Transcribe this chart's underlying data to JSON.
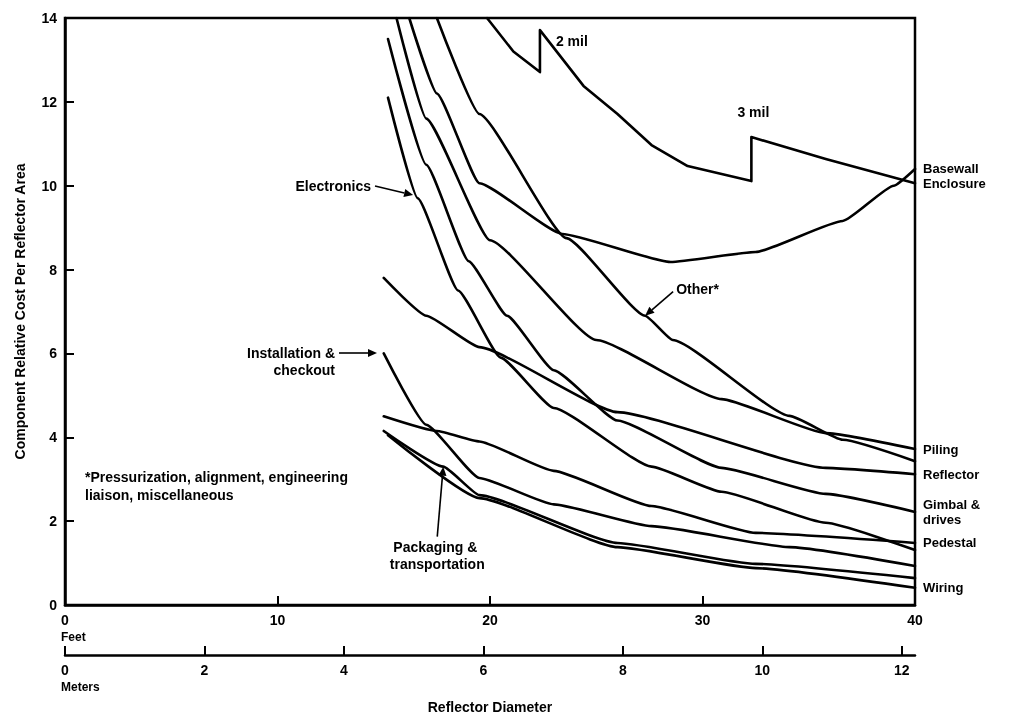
{
  "chart_data": {
    "type": "line",
    "ylabel": "Component Relative Cost Per Reflector Area",
    "xlabel": "Feet",
    "x2label": "Meters",
    "xlim": [
      0,
      40
    ],
    "xticks": [
      0,
      10,
      20,
      30,
      40
    ],
    "x2lim": [
      0,
      12.19
    ],
    "x2ticks": [
      0,
      2,
      4,
      6,
      8,
      10,
      12
    ],
    "ylim": [
      0,
      14
    ],
    "yticks": [
      0,
      2,
      4,
      6,
      8,
      10,
      12,
      14
    ],
    "grid": false,
    "legend": false,
    "marker": "none",
    "line_style": "solid",
    "series": [
      {
        "name": "Basewall",
        "color": "#000000",
        "x": [
          16.2,
          17.5,
          19.5,
          23.4,
          28.5,
          32.5,
          36.6,
          39,
          40
        ],
        "values": [
          14,
          12.2,
          10.06,
          8.85,
          8.18,
          8.42,
          9.16,
          10.0,
          10.4
        ]
      },
      {
        "name": "Enclosure",
        "color": "#000000",
        "x": [
          19.86,
          21.1,
          22.35,
          22.35,
          24.4,
          26.0,
          27.6,
          29.3,
          32.3,
          32.3,
          35.8,
          40
        ],
        "values": [
          14.0,
          13.2,
          12.71,
          13.71,
          12.38,
          11.71,
          10.97,
          10.47,
          10.11,
          11.16,
          10.64,
          10.06
        ]
      },
      {
        "name": "Piling",
        "color": "#000000",
        "x": [
          15.6,
          17,
          20,
          25,
          30.9,
          35.8,
          40
        ],
        "values": [
          14,
          11.6,
          8.7,
          6.32,
          4.91,
          4.1,
          3.72
        ]
      },
      {
        "color": "#000000",
        "x": [
          17.5,
          19.5,
          23.6,
          27.3,
          28.6,
          34.1,
          36.6,
          40
        ],
        "values": [
          14,
          11.71,
          8.75,
          6.9,
          6.32,
          4.51,
          3.94,
          3.43
        ]
      },
      {
        "name": "Reflector",
        "color": "#000000",
        "x": [
          15.0,
          17,
          19.5,
          26,
          35.8,
          40
        ],
        "values": [
          7.8,
          6.9,
          6.15,
          4.6,
          3.27,
          3.12
        ]
      },
      {
        "name": "Gimbal & drives",
        "color": "#000000",
        "x": [
          15.2,
          17,
          19,
          20.8,
          23,
          26,
          30.9,
          35.8,
          40
        ],
        "values": [
          13.5,
          10.5,
          8.2,
          6.9,
          5.6,
          4.4,
          3.27,
          2.65,
          2.22
        ]
      },
      {
        "color": "#000000",
        "x": [
          15.2,
          16.6,
          18.5,
          20.5,
          23,
          27.6,
          30.9,
          35.8,
          40
        ],
        "values": [
          12.1,
          9.7,
          7.5,
          5.9,
          4.7,
          3.3,
          2.7,
          1.96,
          1.31
        ]
      },
      {
        "name": "Pedestal",
        "color": "#000000",
        "x": [
          15,
          17.5,
          19.5,
          23,
          27.6,
          32.5,
          40
        ],
        "values": [
          4.5,
          4.15,
          3.9,
          3.2,
          2.36,
          1.72,
          1.48
        ]
      },
      {
        "color": "#000000",
        "x": [
          15,
          17,
          19.5,
          23,
          27.6,
          34.1,
          40
        ],
        "values": [
          6.0,
          4.3,
          3.03,
          2.4,
          1.88,
          1.38,
          0.93
        ]
      },
      {
        "color": "#000000",
        "x": [
          15,
          17.8,
          19.5,
          26,
          32.5,
          40
        ],
        "values": [
          4.15,
          3.3,
          2.62,
          1.48,
          0.98,
          0.64
        ]
      },
      {
        "name": "Wiring",
        "color": "#000000",
        "x": [
          15.2,
          19.5,
          26,
          32.5,
          40
        ],
        "values": [
          4.05,
          2.55,
          1.38,
          0.88,
          0.41
        ]
      }
    ],
    "annotations": [
      {
        "text": "2 mil",
        "x": 22.35,
        "y": 13.71
      },
      {
        "text": "3 mil",
        "x": 32.3,
        "y": 11.16
      },
      "Electronics",
      "Installation & checkout",
      {
        "text": "Other*",
        "x": 27.3,
        "y": 6.9
      },
      {
        "text": "Packaging & transportation",
        "x": 17.8,
        "y": 3.3
      },
      "*Pressurization, alignment, engineering liaison, miscellaneous",
      "Reflector Diameter"
    ]
  }
}
